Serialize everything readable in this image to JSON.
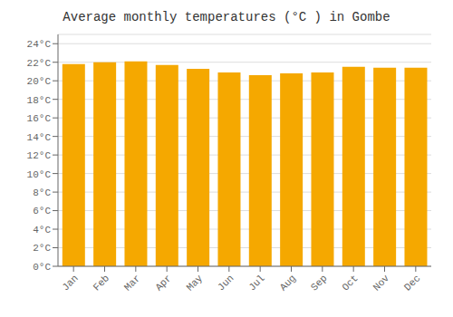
{
  "chart_data": {
    "type": "bar",
    "title": "Average monthly temperatures (°C ) in Gombe",
    "categories": [
      "Jan",
      "Feb",
      "Mar",
      "Apr",
      "May",
      "Jun",
      "Jul",
      "Aug",
      "Sep",
      "Oct",
      "Nov",
      "Dec"
    ],
    "values": [
      21.8,
      22.0,
      22.1,
      21.7,
      21.3,
      20.9,
      20.6,
      20.8,
      20.9,
      21.5,
      21.4,
      21.4
    ],
    "color": "#F5A800",
    "ylim": [
      0,
      25
    ],
    "yticks": [
      {
        "value": 0,
        "label": "0°C"
      },
      {
        "value": 2,
        "label": "2°C"
      },
      {
        "value": 4,
        "label": "4°C"
      },
      {
        "value": 6,
        "label": "6°C"
      },
      {
        "value": 8,
        "label": "8°C"
      },
      {
        "value": 10,
        "label": "10°C"
      },
      {
        "value": 12,
        "label": "12°C"
      },
      {
        "value": 14,
        "label": "14°C"
      },
      {
        "value": 16,
        "label": "16°C"
      },
      {
        "value": 18,
        "label": "18°C"
      },
      {
        "value": 20,
        "label": "20°C"
      },
      {
        "value": 22,
        "label": "22°C"
      },
      {
        "value": 24,
        "label": "24°C"
      }
    ],
    "grid": true
  }
}
